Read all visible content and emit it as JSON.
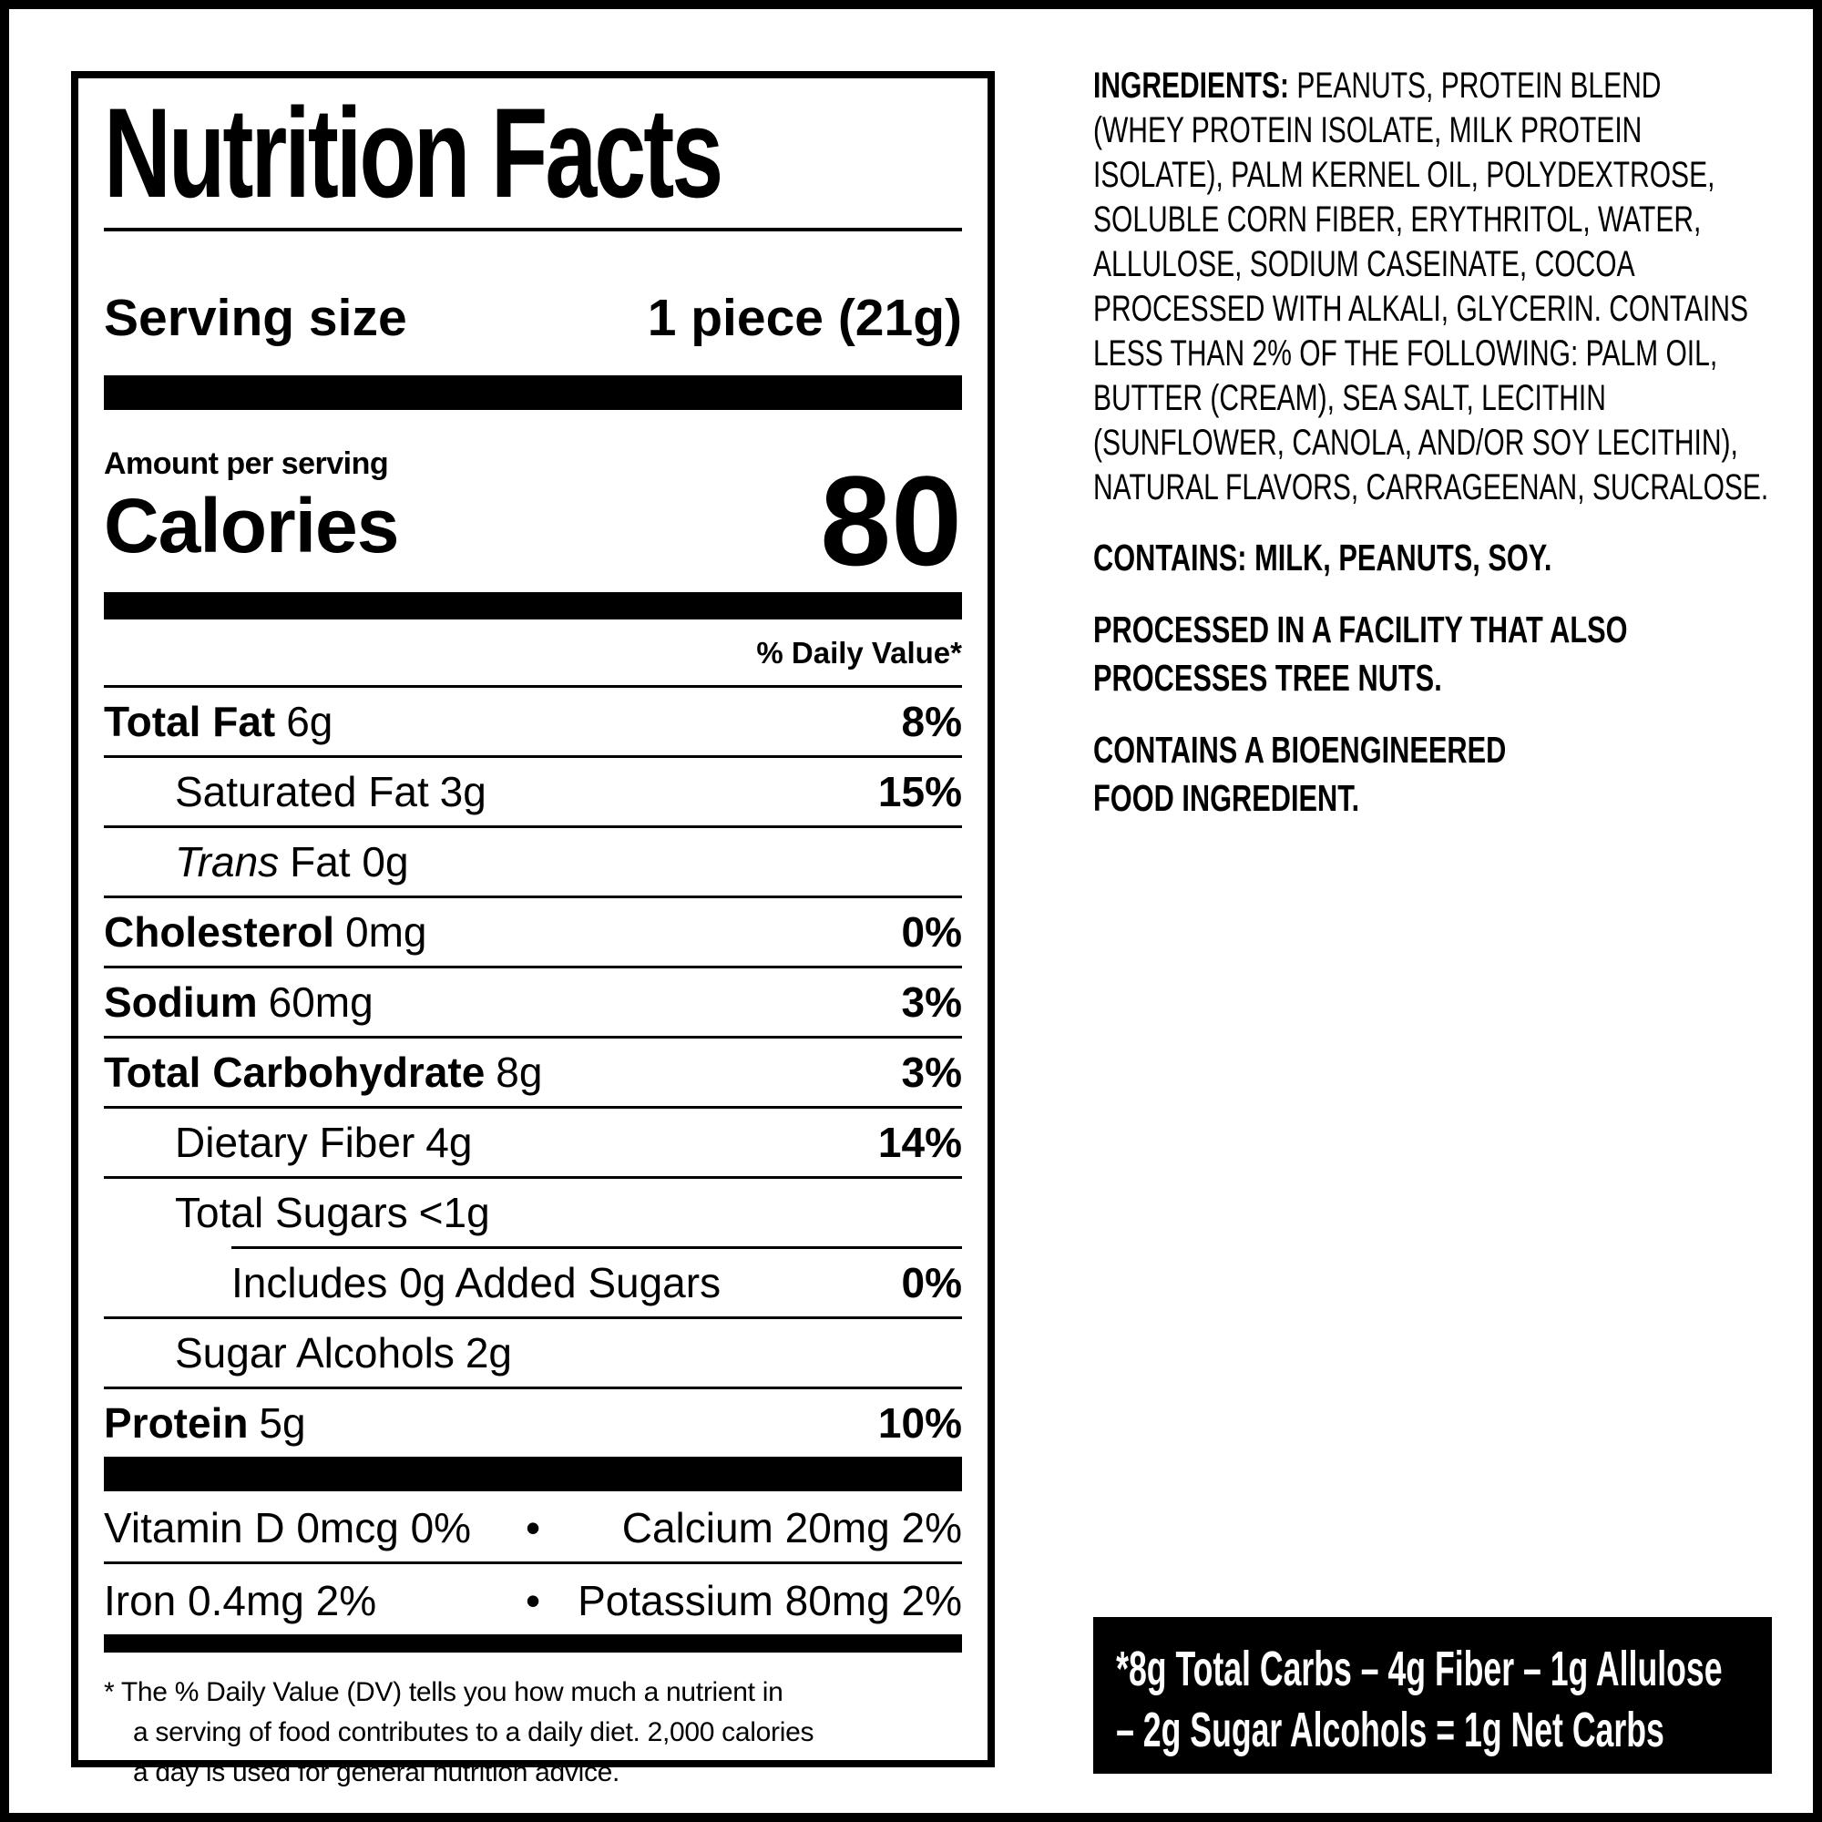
{
  "colors": {
    "ink": "#000000",
    "paper": "#ffffff"
  },
  "nutrition_label": {
    "title": "Nutrition Facts",
    "serving": {
      "label": "Serving size",
      "value": "1 piece (21g)"
    },
    "amount_per_serving": "Amount per serving",
    "calories": {
      "label": "Calories",
      "value": "80"
    },
    "daily_value_header": "% Daily Value*",
    "rows": [
      {
        "name": "Total Fat",
        "rest": "6g",
        "dv": "8%",
        "style": "bold",
        "indent": 0
      },
      {
        "name": "Saturated Fat",
        "rest": "3g",
        "dv": "15%",
        "style": "plain",
        "indent": 1
      },
      {
        "name": "Trans",
        "rest": "Fat 0g",
        "dv": "",
        "style": "italic",
        "indent": 1
      },
      {
        "name": "Cholesterol",
        "rest": "0mg",
        "dv": "0%",
        "style": "bold",
        "indent": 0
      },
      {
        "name": "Sodium",
        "rest": "60mg",
        "dv": "3%",
        "style": "bold",
        "indent": 0
      },
      {
        "name": "Total Carbohydrate",
        "rest": "8g",
        "dv": "3%",
        "style": "bold",
        "indent": 0
      },
      {
        "name": "Dietary Fiber",
        "rest": "4g",
        "dv": "14%",
        "style": "plain",
        "indent": 1
      },
      {
        "name": "Total Sugars",
        "rest": "<1g",
        "dv": "",
        "style": "plain",
        "indent": 1
      },
      {
        "name": "Includes 0g Added Sugars",
        "rest": "",
        "dv": "0%",
        "style": "plain",
        "indent": 2,
        "rule_indent": true
      },
      {
        "name": "Sugar Alcohols",
        "rest": "2g",
        "dv": "",
        "style": "plain",
        "indent": 1
      },
      {
        "name": "Protein",
        "rest": "5g",
        "dv": "10%",
        "style": "bold",
        "indent": 0
      }
    ],
    "micronutrients": [
      {
        "left": "Vitamin D 0mcg 0%",
        "bullet": "•",
        "right": "Calcium 20mg 2%"
      },
      {
        "left": "Iron 0.4mg 2%",
        "bullet": "•",
        "right": "Potassium 80mg 2%"
      }
    ],
    "footnote": "* The % Daily Value (DV) tells you how much a nutrient in\na serving of food contributes to a daily diet. 2,000 calories\na day is used for general nutrition advice."
  },
  "ingredients_panel": {
    "label": "INGREDIENTS:",
    "text": " PEANUTS, PROTEIN BLEND\n(WHEY PROTEIN ISOLATE, MILK PROTEIN\nISOLATE), PALM KERNEL OIL, POLYDEXTROSE,\nSOLUBLE CORN FIBER, ERYTHRITOL, WATER,\nALLULOSE, SODIUM CASEINATE, COCOA\nPROCESSED WITH ALKALI, GLYCERIN. CONTAINS\nLESS THAN 2% OF THE FOLLOWING: PALM OIL,\nBUTTER (CREAM), SEA SALT, LECITHIN\n(SUNFLOWER, CANOLA, AND/OR SOY LECITHIN),\nNATURAL FLAVORS, CARRAGEENAN, SUCRALOSE.",
    "contains": "CONTAINS: MILK, PEANUTS, SOY.",
    "facility": "PROCESSED IN A FACILITY THAT ALSO\nPROCESSES TREE NUTS.",
    "bioengineered": "CONTAINS A BIOENGINEERED\nFOOD INGREDIENT."
  },
  "net_carbs_box": {
    "bg": "#000000",
    "fg": "#ffffff",
    "text": "*8g Total Carbs – 4g Fiber – 1g Allulose\n– 2g Sugar Alcohols = 1g Net Carbs"
  }
}
